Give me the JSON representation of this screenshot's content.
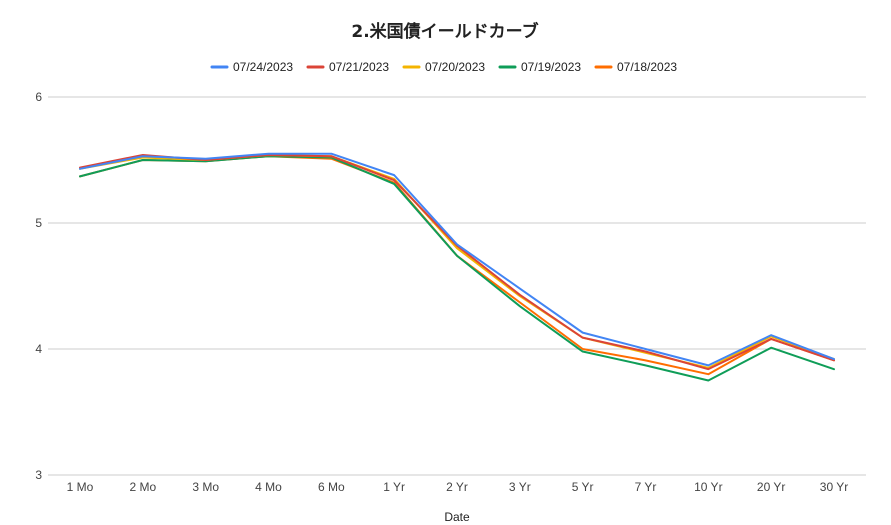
{
  "chart_data": {
    "type": "line",
    "title": "2.米国債イールドカーブ",
    "xlabel": "Date",
    "ylabel": "",
    "categories": [
      "1 Mo",
      "2 Mo",
      "3 Mo",
      "4 Mo",
      "6 Mo",
      "1 Yr",
      "2 Yr",
      "3 Yr",
      "5 Yr",
      "7 Yr",
      "10 Yr",
      "20 Yr",
      "30 Yr"
    ],
    "ylim": [
      3,
      6
    ],
    "yticks": [
      "3",
      "4",
      "5",
      "6"
    ],
    "grid": true,
    "legend_position": "top",
    "series": [
      {
        "name": "07/24/2023",
        "color": "#4285F4",
        "values": [
          5.43,
          5.53,
          5.51,
          5.55,
          5.55,
          5.38,
          4.83,
          4.48,
          4.13,
          4.0,
          3.87,
          4.11,
          3.92
        ]
      },
      {
        "name": "07/21/2023",
        "color": "#DB4437",
        "values": [
          5.44,
          5.54,
          5.5,
          5.54,
          5.53,
          5.34,
          4.82,
          4.43,
          4.09,
          3.98,
          3.84,
          4.08,
          3.91
        ]
      },
      {
        "name": "07/20/2023",
        "color": "#F4B400",
        "values": [
          5.43,
          5.52,
          5.5,
          5.54,
          5.53,
          5.35,
          4.8,
          4.42,
          4.09,
          3.97,
          3.85,
          4.1,
          3.92
        ]
      },
      {
        "name": "07/19/2023",
        "color": "#0F9D58",
        "values": [
          5.37,
          5.5,
          5.49,
          5.53,
          5.52,
          5.31,
          4.74,
          4.34,
          3.98,
          3.87,
          3.75,
          4.01,
          3.84
        ]
      },
      {
        "name": "07/18/2023",
        "color": "#FF6D00",
        "values": [
          5.37,
          5.5,
          5.49,
          5.53,
          5.51,
          5.32,
          4.74,
          4.37,
          4.0,
          3.91,
          3.8,
          4.08,
          3.91
        ]
      }
    ]
  }
}
